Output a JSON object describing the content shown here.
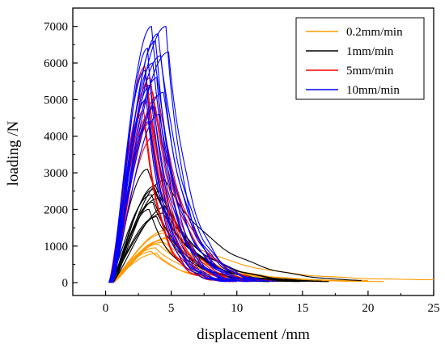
{
  "chart_data": {
    "type": "line",
    "title": "",
    "xlabel": "displacement /mm",
    "ylabel": "loading /N",
    "xlim": [
      -2.5,
      25
    ],
    "ylim": [
      -350,
      7500
    ],
    "xticks": [
      0,
      5,
      10,
      15,
      20,
      25
    ],
    "yticks": [
      0,
      1000,
      2000,
      3000,
      4000,
      5000,
      6000,
      7000
    ],
    "x_tick_labels": [
      "0",
      "5",
      "10",
      "15",
      "20",
      "25"
    ],
    "y_tick_labels": [
      "0",
      "1000",
      "2000",
      "3000",
      "4000",
      "5000",
      "6000",
      "7000"
    ],
    "grid": false,
    "legend_position": "top-right",
    "series": [
      {
        "name": "0.2mm/min",
        "color": "#FF9900",
        "curves": [
          {
            "peak_x": 4.8,
            "peak_y": 1450,
            "end_x": 25.0,
            "end_y": 80
          },
          {
            "peak_x": 4.5,
            "peak_y": 1350,
            "end_x": 21.2,
            "end_y": 30
          },
          {
            "peak_x": 5.0,
            "peak_y": 1250,
            "end_x": 20.0,
            "end_y": 60
          },
          {
            "peak_x": 4.2,
            "peak_y": 1150,
            "end_x": 18.5,
            "end_y": 40
          },
          {
            "peak_x": 4.0,
            "peak_y": 1050,
            "end_x": 17.0,
            "end_y": 30
          },
          {
            "peak_x": 3.8,
            "peak_y": 950,
            "end_x": 16.0,
            "end_y": 40
          },
          {
            "peak_x": 3.5,
            "peak_y": 850,
            "end_x": 15.0,
            "end_y": 50
          },
          {
            "peak_x": 4.6,
            "peak_y": 1200,
            "end_x": 19.0,
            "end_y": 50
          },
          {
            "peak_x": 4.3,
            "peak_y": 1100,
            "end_x": 14.5,
            "end_y": 30
          },
          {
            "peak_x": 3.9,
            "peak_y": 800,
            "end_x": 13.0,
            "end_y": 40
          }
        ]
      },
      {
        "name": "1mm/min",
        "color": "#000000",
        "curves": [
          {
            "peak_x": 3.2,
            "peak_y": 3100,
            "end_x": 17.0,
            "end_y": 30
          },
          {
            "peak_x": 4.5,
            "peak_y": 2800,
            "end_x": 19.5,
            "end_y": 60
          },
          {
            "peak_x": 3.8,
            "peak_y": 2650,
            "end_x": 16.5,
            "end_y": 40
          },
          {
            "peak_x": 4.2,
            "peak_y": 2500,
            "end_x": 15.5,
            "end_y": 50
          },
          {
            "peak_x": 3.5,
            "peak_y": 2400,
            "end_x": 14.8,
            "end_y": 30
          },
          {
            "peak_x": 4.0,
            "peak_y": 2300,
            "end_x": 16.0,
            "end_y": 40
          },
          {
            "peak_x": 3.6,
            "peak_y": 2200,
            "end_x": 13.5,
            "end_y": 50
          },
          {
            "peak_x": 4.8,
            "peak_y": 2100,
            "end_x": 15.2,
            "end_y": 40
          },
          {
            "peak_x": 3.3,
            "peak_y": 2000,
            "end_x": 12.5,
            "end_y": 30
          },
          {
            "peak_x": 4.4,
            "peak_y": 1900,
            "end_x": 14.2,
            "end_y": 60
          },
          {
            "peak_x": 3.9,
            "peak_y": 1800,
            "end_x": 13.0,
            "end_y": 40
          },
          {
            "peak_x": 3.7,
            "peak_y": 2550,
            "end_x": 15.8,
            "end_y": 50
          }
        ]
      },
      {
        "name": "5mm/min",
        "color": "#FF0000",
        "curves": [
          {
            "peak_x": 3.0,
            "peak_y": 5900,
            "end_x": 11.0,
            "end_y": 30
          },
          {
            "peak_x": 3.4,
            "peak_y": 5600,
            "end_x": 11.5,
            "end_y": 40
          },
          {
            "peak_x": 3.2,
            "peak_y": 5400,
            "end_x": 10.5,
            "end_y": 30
          },
          {
            "peak_x": 3.6,
            "peak_y": 5200,
            "end_x": 12.0,
            "end_y": 50
          },
          {
            "peak_x": 3.1,
            "peak_y": 5000,
            "end_x": 10.0,
            "end_y": 30
          },
          {
            "peak_x": 3.8,
            "peak_y": 4800,
            "end_x": 12.5,
            "end_y": 40
          },
          {
            "peak_x": 3.3,
            "peak_y": 4600,
            "end_x": 9.5,
            "end_y": 30
          },
          {
            "peak_x": 3.5,
            "peak_y": 4400,
            "end_x": 11.2,
            "end_y": 50
          },
          {
            "peak_x": 3.0,
            "peak_y": 4200,
            "end_x": 9.8,
            "end_y": 30
          },
          {
            "peak_x": 3.7,
            "peak_y": 4000,
            "end_x": 10.8,
            "end_y": 40
          },
          {
            "peak_x": 4.0,
            "peak_y": 5100,
            "end_x": 13.0,
            "end_y": 40
          },
          {
            "peak_x": 2.9,
            "peak_y": 4700,
            "end_x": 9.2,
            "end_y": 30
          }
        ]
      },
      {
        "name": "10mm/min",
        "color": "#0000FF",
        "curves": [
          {
            "peak_x": 4.6,
            "peak_y": 7000,
            "end_x": 12.0,
            "end_y": 40
          },
          {
            "peak_x": 3.5,
            "peak_y": 7000,
            "end_x": 10.5,
            "end_y": 30
          },
          {
            "peak_x": 4.0,
            "peak_y": 6800,
            "end_x": 11.5,
            "end_y": 40
          },
          {
            "peak_x": 3.8,
            "peak_y": 6600,
            "end_x": 10.8,
            "end_y": 30
          },
          {
            "peak_x": 3.2,
            "peak_y": 6400,
            "end_x": 9.8,
            "end_y": 40
          },
          {
            "peak_x": 4.2,
            "peak_y": 6200,
            "end_x": 11.8,
            "end_y": 30
          },
          {
            "peak_x": 3.6,
            "peak_y": 6000,
            "end_x": 10.2,
            "end_y": 40
          },
          {
            "peak_x": 3.0,
            "peak_y": 5800,
            "end_x": 9.5,
            "end_y": 30
          },
          {
            "peak_x": 3.9,
            "peak_y": 5600,
            "end_x": 11.0,
            "end_y": 40
          },
          {
            "peak_x": 3.4,
            "peak_y": 5400,
            "end_x": 10.0,
            "end_y": 30
          },
          {
            "peak_x": 4.4,
            "peak_y": 5200,
            "end_x": 12.5,
            "end_y": 40
          },
          {
            "peak_x": 3.1,
            "peak_y": 5000,
            "end_x": 9.2,
            "end_y": 30
          },
          {
            "peak_x": 3.7,
            "peak_y": 4800,
            "end_x": 10.6,
            "end_y": 40
          },
          {
            "peak_x": 4.1,
            "peak_y": 4600,
            "end_x": 11.2,
            "end_y": 30
          },
          {
            "peak_x": 3.3,
            "peak_y": 4400,
            "end_x": 9.6,
            "end_y": 40
          },
          {
            "peak_x": 4.8,
            "peak_y": 6300,
            "end_x": 13.0,
            "end_y": 40
          }
        ]
      }
    ]
  }
}
